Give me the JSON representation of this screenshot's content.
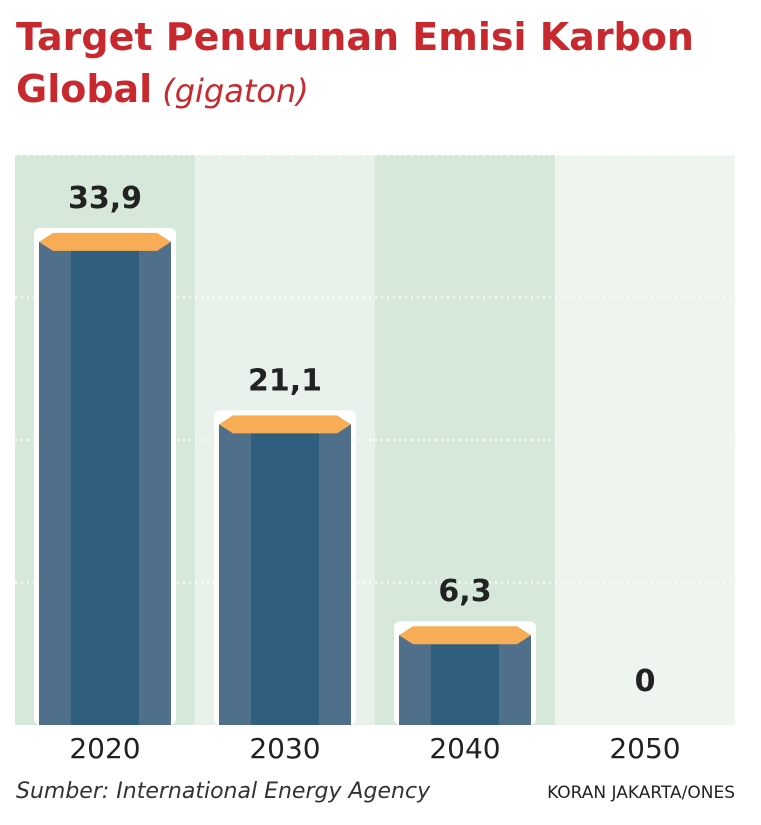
{
  "chart_data": {
    "type": "bar",
    "title": "Target Penurunan Emisi Karbon",
    "title_line2": "Global",
    "unit": "(gigaton)",
    "categories": [
      "2020",
      "2030",
      "2040",
      "2050"
    ],
    "values": [
      33.9,
      21.1,
      6.3,
      0
    ],
    "value_labels": [
      "33,9",
      "21,1",
      "6,3",
      "0"
    ],
    "color": "#4f6f8b",
    "top_color": "#f6ad55",
    "ylim": [
      0,
      40
    ],
    "yticks": [
      10,
      20,
      30,
      40
    ],
    "grid": true,
    "source": "Sumber: International Energy Agency",
    "credit": "KORAN JAKARTA/ONES"
  }
}
